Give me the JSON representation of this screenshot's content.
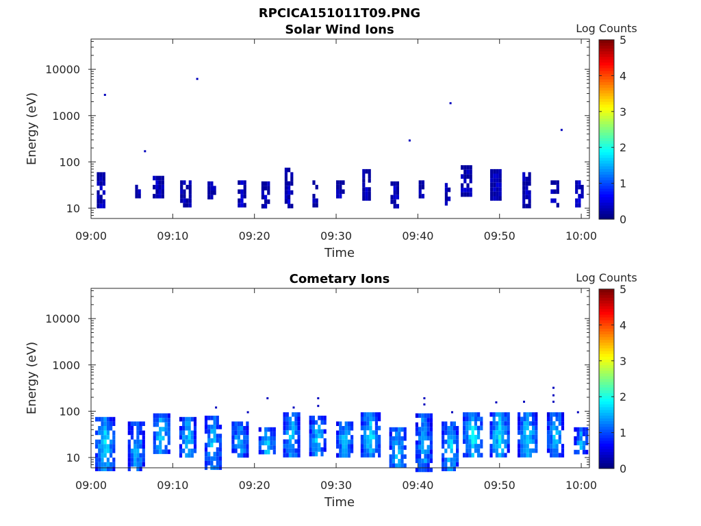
{
  "figure": {
    "main_title": "RPCICA151011T09.PNG"
  },
  "chart_data": [
    {
      "type": "heatmap",
      "title": "Solar Wind Ions",
      "xlabel": "Time",
      "ylabel": "Energy (eV)",
      "x_ticks": [
        "09:00",
        "09:10",
        "09:20",
        "09:30",
        "09:40",
        "09:50",
        "10:00"
      ],
      "x_range_minutes": [
        0,
        61
      ],
      "y_scale": "log",
      "y_ticks": [
        "10",
        "100",
        "1000",
        "10000"
      ],
      "ylim": [
        6,
        45000
      ],
      "colorbar": {
        "label": "Log Counts",
        "range": [
          0,
          5
        ],
        "ticks": [
          "0",
          "1",
          "2",
          "3",
          "4",
          "5"
        ],
        "colormap": "jet"
      },
      "bursts": [
        {
          "t": 1.3,
          "w": 1.2,
          "e_lo": 12,
          "e_hi": 60,
          "level": 0.3
        },
        {
          "t": 5.8,
          "w": 0.8,
          "e_lo": 18,
          "e_hi": 32,
          "level": 0.3
        },
        {
          "t": 8.2,
          "w": 1.3,
          "e_lo": 18,
          "e_hi": 50,
          "level": 0.3
        },
        {
          "t": 11.6,
          "w": 1.4,
          "e_lo": 12,
          "e_hi": 40,
          "level": 0.3
        },
        {
          "t": 14.8,
          "w": 1.1,
          "e_lo": 18,
          "e_hi": 38,
          "level": 0.3
        },
        {
          "t": 18.4,
          "w": 0.9,
          "e_lo": 12,
          "e_hi": 40,
          "level": 0.3
        },
        {
          "t": 21.3,
          "w": 0.9,
          "e_lo": 12,
          "e_hi": 38,
          "level": 0.3
        },
        {
          "t": 24.3,
          "w": 1.2,
          "e_lo": 12,
          "e_hi": 75,
          "level": 0.3
        },
        {
          "t": 27.5,
          "w": 0.8,
          "e_lo": 12,
          "e_hi": 40,
          "level": 0.3
        },
        {
          "t": 30.6,
          "w": 1.2,
          "e_lo": 18,
          "e_hi": 40,
          "level": 0.3
        },
        {
          "t": 33.8,
          "w": 1.2,
          "e_lo": 18,
          "e_hi": 70,
          "level": 0.3
        },
        {
          "t": 37.2,
          "w": 1.1,
          "e_lo": 12,
          "e_hi": 38,
          "level": 0.3
        },
        {
          "t": 40.5,
          "w": 0.8,
          "e_lo": 18,
          "e_hi": 40,
          "level": 0.3
        },
        {
          "t": 43.6,
          "w": 0.6,
          "e_lo": 12,
          "e_hi": 35,
          "level": 0.3
        },
        {
          "t": 46.0,
          "w": 1.5,
          "e_lo": 18,
          "e_hi": 85,
          "level": 0.3
        },
        {
          "t": 49.6,
          "w": 1.5,
          "e_lo": 18,
          "e_hi": 70,
          "level": 0.3
        },
        {
          "t": 53.4,
          "w": 1.2,
          "e_lo": 12,
          "e_hi": 60,
          "level": 0.3
        },
        {
          "t": 56.8,
          "w": 1.1,
          "e_lo": 12,
          "e_hi": 40,
          "level": 0.3
        },
        {
          "t": 59.8,
          "w": 1.1,
          "e_lo": 12,
          "e_hi": 40,
          "level": 0.3
        }
      ],
      "points": [
        {
          "t": 1.7,
          "e": 2800,
          "level": 0.3
        },
        {
          "t": 6.6,
          "e": 170,
          "level": 0.3
        },
        {
          "t": 13.0,
          "e": 6200,
          "level": 0.3
        },
        {
          "t": 39.0,
          "e": 290,
          "level": 0.3
        },
        {
          "t": 44.0,
          "e": 1850,
          "level": 0.3
        },
        {
          "t": 57.6,
          "e": 490,
          "level": 0.3
        }
      ]
    },
    {
      "type": "heatmap",
      "title": "Cometary Ions",
      "xlabel": "Time",
      "ylabel": "Energy (eV)",
      "x_ticks": [
        "09:00",
        "09:10",
        "09:20",
        "09:30",
        "09:40",
        "09:50",
        "10:00"
      ],
      "x_range_minutes": [
        0,
        61
      ],
      "y_scale": "log",
      "y_ticks": [
        "10",
        "100",
        "1000",
        "10000"
      ],
      "ylim": [
        6,
        45000
      ],
      "colorbar": {
        "label": "Log Counts",
        "range": [
          0,
          5
        ],
        "ticks": [
          "0",
          "1",
          "2",
          "3",
          "4",
          "5"
        ],
        "colormap": "jet"
      },
      "bursts": [
        {
          "t": 1.8,
          "w": 2.6,
          "e_lo": 6,
          "e_hi": 75,
          "level": 1.8
        },
        {
          "t": 5.5,
          "w": 2.0,
          "e_lo": 6,
          "e_hi": 60,
          "level": 1.6
        },
        {
          "t": 8.7,
          "w": 2.2,
          "e_lo": 12,
          "e_hi": 90,
          "level": 1.8
        },
        {
          "t": 11.8,
          "w": 2.0,
          "e_lo": 12,
          "e_hi": 75,
          "level": 1.7
        },
        {
          "t": 15.0,
          "w": 2.2,
          "e_lo": 6,
          "e_hi": 80,
          "level": 1.7
        },
        {
          "t": 18.2,
          "w": 2.0,
          "e_lo": 12,
          "e_hi": 60,
          "level": 1.7
        },
        {
          "t": 21.5,
          "w": 2.0,
          "e_lo": 12,
          "e_hi": 45,
          "level": 1.8
        },
        {
          "t": 24.6,
          "w": 2.2,
          "e_lo": 12,
          "e_hi": 95,
          "level": 1.8
        },
        {
          "t": 27.8,
          "w": 2.2,
          "e_lo": 12,
          "e_hi": 80,
          "level": 1.7
        },
        {
          "t": 31.0,
          "w": 2.0,
          "e_lo": 12,
          "e_hi": 60,
          "level": 1.7
        },
        {
          "t": 34.2,
          "w": 2.4,
          "e_lo": 12,
          "e_hi": 95,
          "level": 1.8
        },
        {
          "t": 37.5,
          "w": 2.0,
          "e_lo": 6,
          "e_hi": 45,
          "level": 1.7
        },
        {
          "t": 40.8,
          "w": 2.2,
          "e_lo": 6,
          "e_hi": 90,
          "level": 1.6
        },
        {
          "t": 43.9,
          "w": 2.0,
          "e_lo": 6,
          "e_hi": 60,
          "level": 1.8
        },
        {
          "t": 46.8,
          "w": 2.6,
          "e_lo": 12,
          "e_hi": 95,
          "level": 1.9
        },
        {
          "t": 50.0,
          "w": 2.4,
          "e_lo": 12,
          "e_hi": 95,
          "level": 1.9
        },
        {
          "t": 53.4,
          "w": 2.4,
          "e_lo": 12,
          "e_hi": 95,
          "level": 1.8
        },
        {
          "t": 56.8,
          "w": 2.0,
          "e_lo": 12,
          "e_hi": 95,
          "level": 1.7
        },
        {
          "t": 60.0,
          "w": 1.8,
          "e_lo": 12,
          "e_hi": 45,
          "level": 1.6
        }
      ],
      "points": [
        {
          "t": 15.3,
          "e": 120,
          "level": 0.3
        },
        {
          "t": 19.2,
          "e": 95,
          "level": 0.3
        },
        {
          "t": 21.6,
          "e": 190,
          "level": 0.3
        },
        {
          "t": 24.8,
          "e": 120,
          "level": 0.3
        },
        {
          "t": 27.8,
          "e": 190,
          "level": 0.3
        },
        {
          "t": 27.8,
          "e": 130,
          "level": 0.3
        },
        {
          "t": 40.8,
          "e": 190,
          "level": 0.3
        },
        {
          "t": 40.8,
          "e": 140,
          "level": 0.3
        },
        {
          "t": 44.2,
          "e": 95,
          "level": 0.3
        },
        {
          "t": 49.6,
          "e": 155,
          "level": 0.3
        },
        {
          "t": 53.0,
          "e": 160,
          "level": 0.3
        },
        {
          "t": 56.6,
          "e": 320,
          "level": 0.3
        },
        {
          "t": 56.6,
          "e": 220,
          "level": 0.3
        },
        {
          "t": 56.6,
          "e": 160,
          "level": 0.3
        },
        {
          "t": 59.6,
          "e": 95,
          "level": 0.3
        }
      ]
    }
  ]
}
